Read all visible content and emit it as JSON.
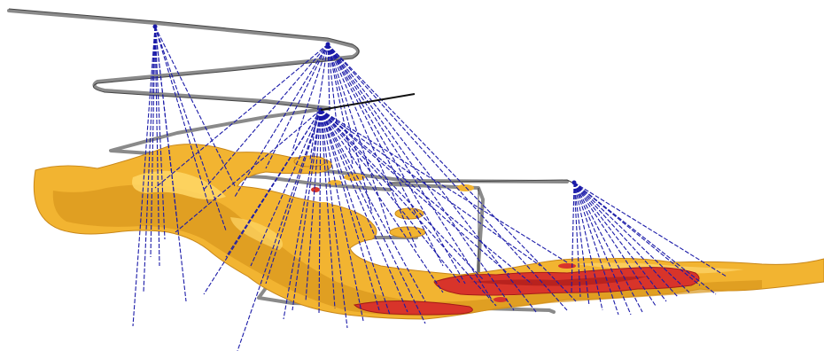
{
  "scene": {
    "description_visible_text": [],
    "colors": {
      "background": "#ffffff",
      "orebody_fill": "#f2b431",
      "orebody_shade": "#d8951c",
      "orebody_highlight": "#ffd766",
      "high_grade_fill": "#d8342a",
      "high_grade_shade": "#b01e1c",
      "drillhole": "#1a1aa8",
      "drive": "#8a8a8a",
      "drive_dark": "#555555",
      "pointer_line": "#111111"
    }
  }
}
